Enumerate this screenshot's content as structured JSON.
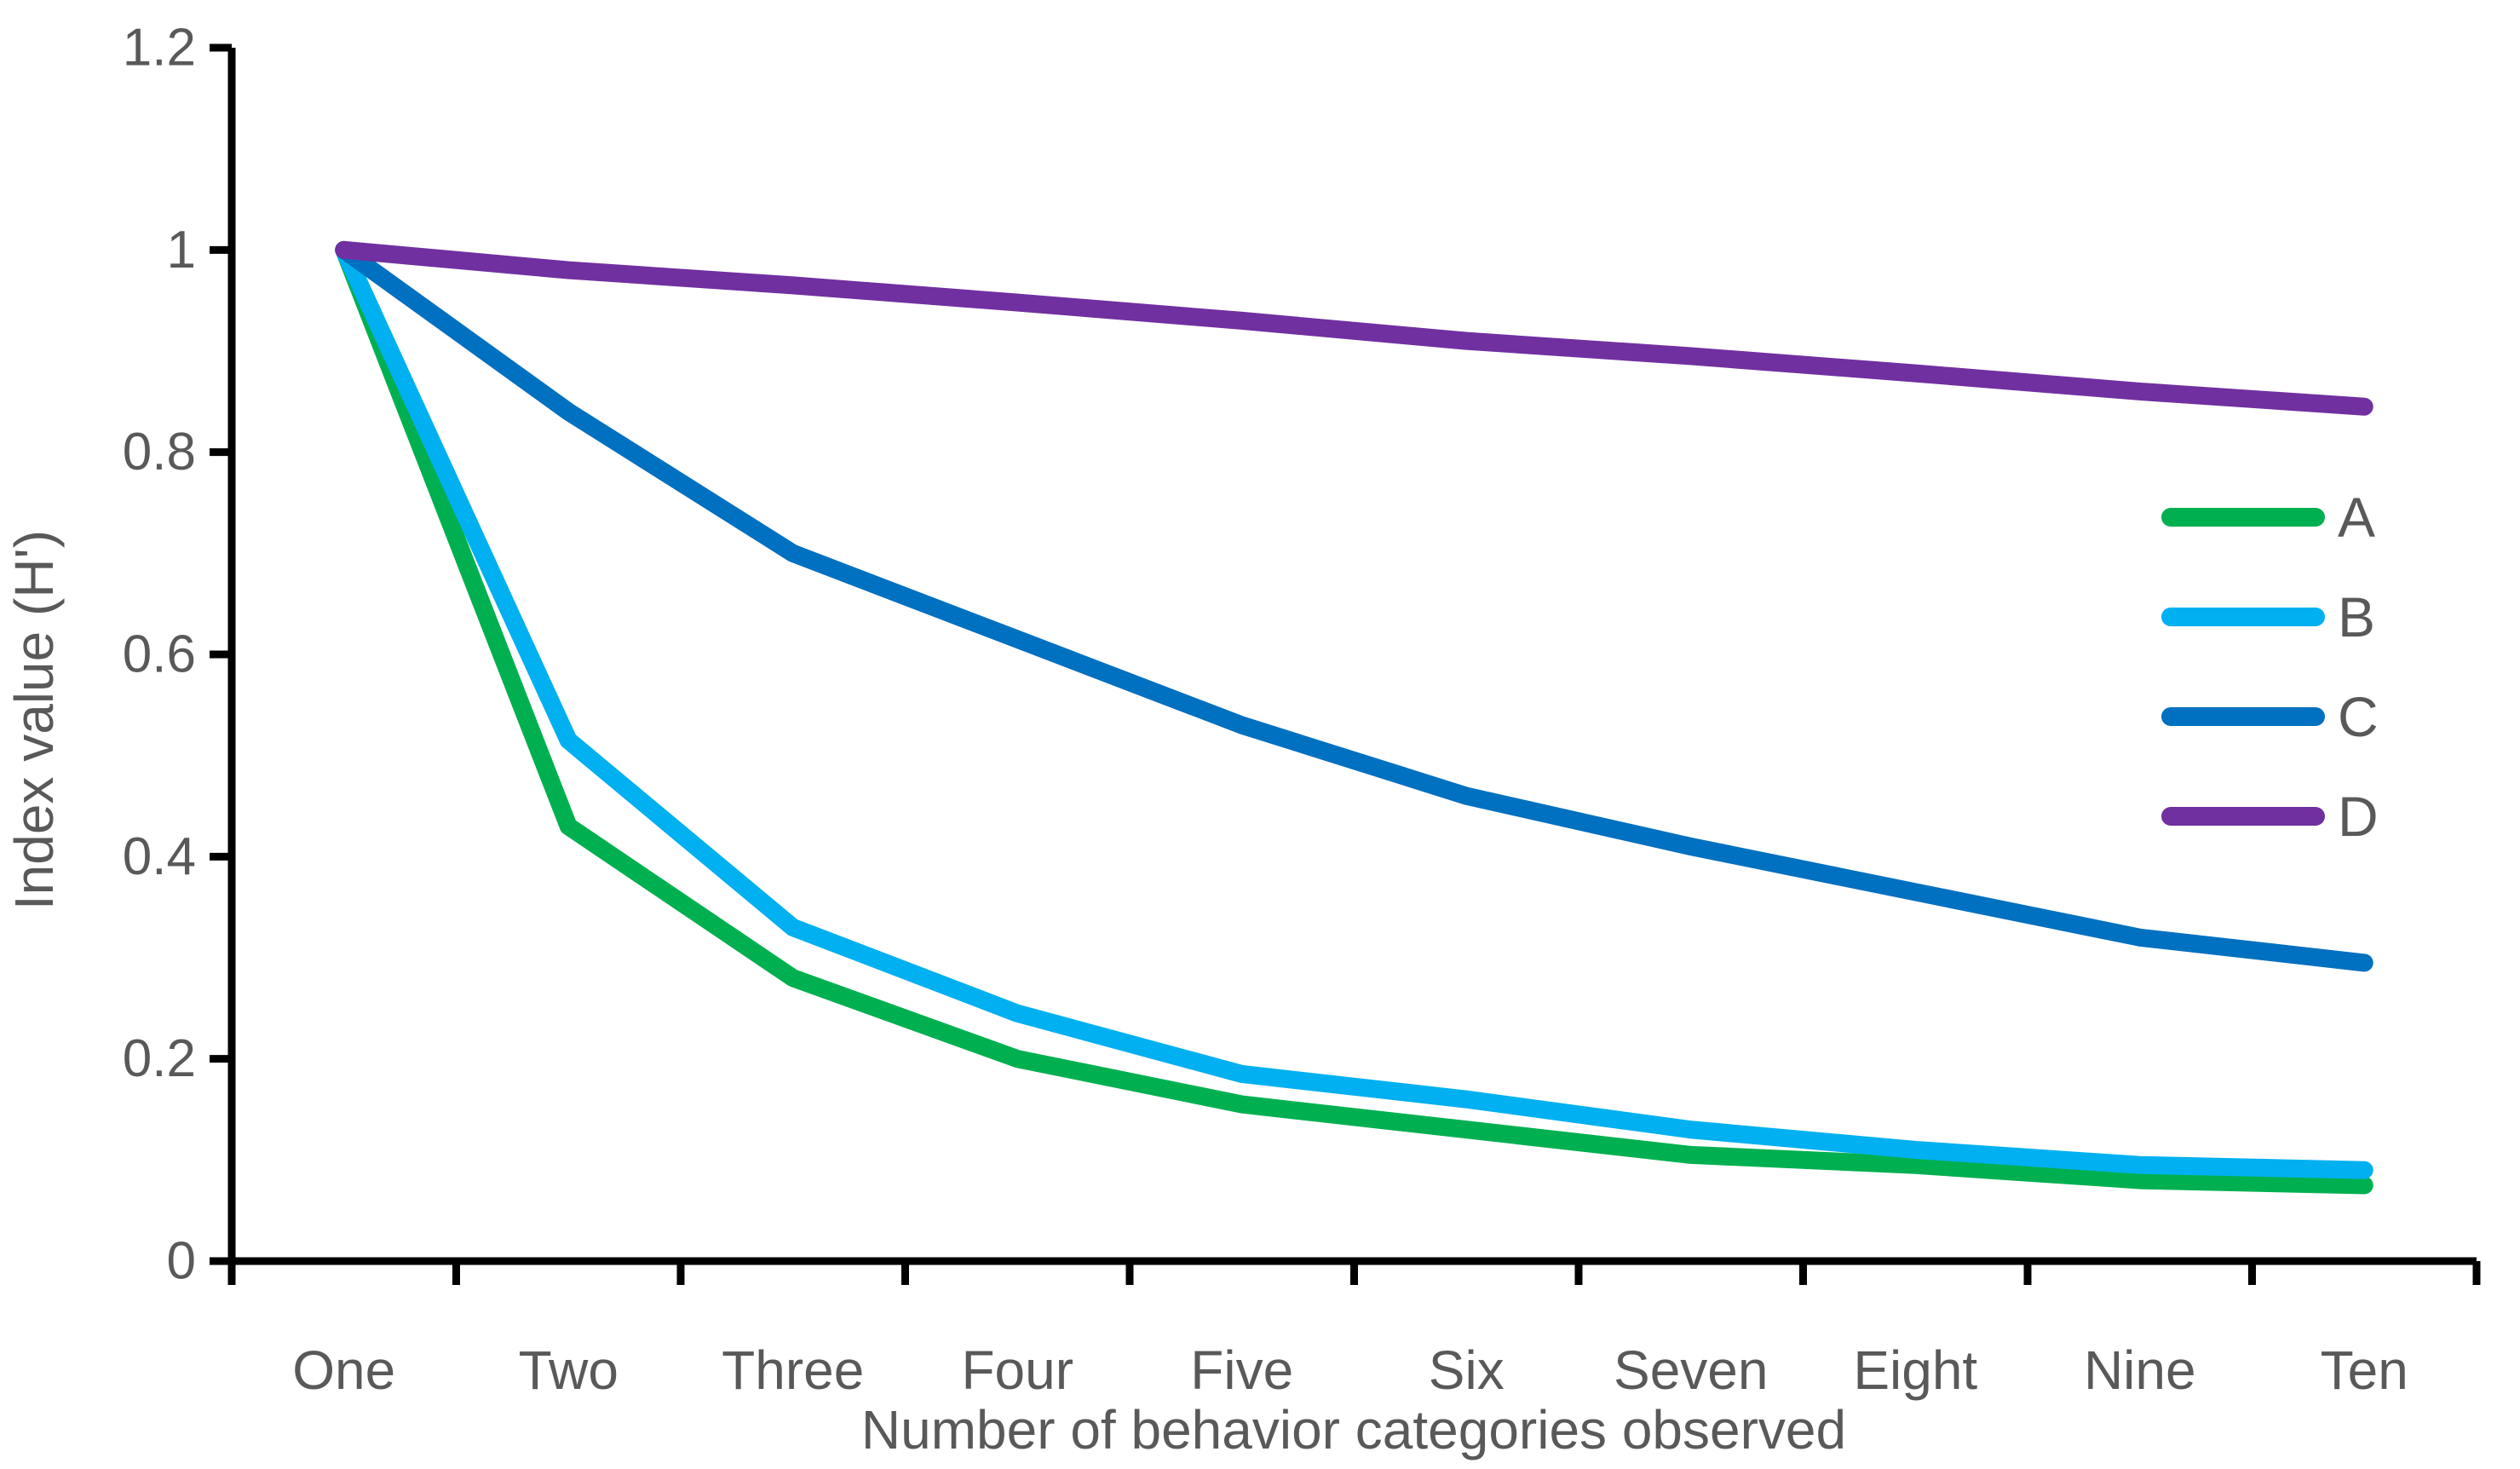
{
  "figure": {
    "background": "#ffffff",
    "axis_color": "#000000",
    "text_color": "#595959"
  },
  "chart_data": {
    "type": "line",
    "title": "",
    "xlabel": "Number of behavior categories observed",
    "ylabel": "Index value (H')",
    "categories": [
      "One",
      "Two",
      "Three",
      "Four",
      "Five",
      "Six",
      "Seven",
      "Eight",
      "Nine",
      "Ten"
    ],
    "series": [
      {
        "name": "A",
        "color": "#00B050",
        "values": [
          1,
          0.43,
          0.28,
          0.2,
          0.155,
          0.13,
          0.105,
          0.095,
          0.08,
          0.075
        ]
      },
      {
        "name": "B",
        "color": "#00B0F0",
        "values": [
          1,
          0.515,
          0.33,
          0.245,
          0.185,
          0.16,
          0.13,
          0.11,
          0.095,
          0.09
        ]
      },
      {
        "name": "C",
        "color": "#0070C0",
        "values": [
          1,
          0.84,
          0.7,
          0.615,
          0.53,
          0.46,
          0.41,
          0.365,
          0.32,
          0.295
        ]
      },
      {
        "name": "D",
        "color": "#7030A0",
        "values": [
          1,
          0.98,
          0.965,
          0.948,
          0.93,
          0.91,
          0.895,
          0.878,
          0.86,
          0.845
        ]
      }
    ],
    "ylim": [
      0,
      1.2
    ],
    "yticks": [
      0,
      0.2,
      0.4,
      0.6,
      0.8,
      1,
      1.2
    ],
    "ytick_labels": [
      "0",
      "0.2",
      "0.4",
      "0.6",
      "0.8",
      "1",
      "1.2"
    ],
    "grid": false,
    "legend_position": "right",
    "legend": [
      "A",
      "B",
      "C",
      "D"
    ]
  }
}
